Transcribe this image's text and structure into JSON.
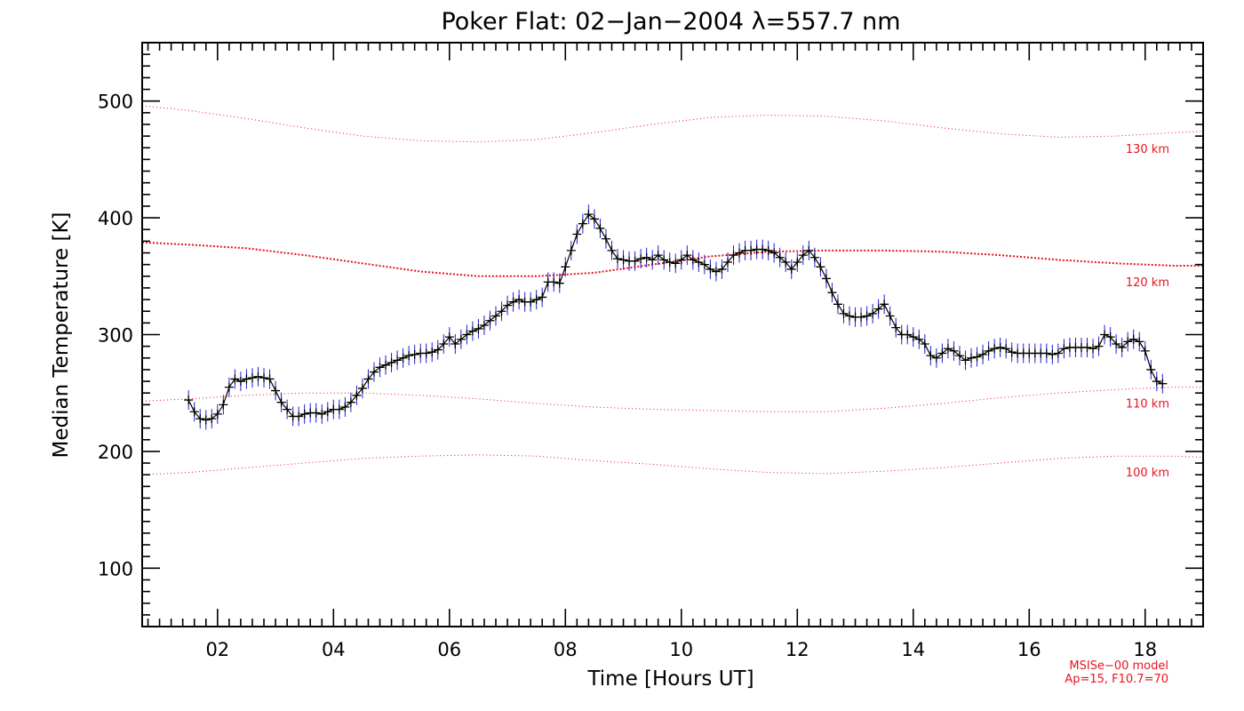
{
  "chart_data": {
    "type": "line",
    "title": "Poker Flat: 02−Jan−2004 λ=557.7 nm",
    "xlabel": "Time [Hours UT]",
    "ylabel": "Median Temperature [K]",
    "xlim": [
      0.7,
      19.0
    ],
    "ylim": [
      50,
      550
    ],
    "x_ticks": [
      2,
      4,
      6,
      8,
      10,
      12,
      14,
      16,
      18
    ],
    "x_tick_labels": [
      "02",
      "04",
      "06",
      "08",
      "10",
      "12",
      "14",
      "16",
      "18"
    ],
    "y_ticks": [
      100,
      200,
      300,
      400,
      500
    ],
    "y_tick_labels": [
      "100",
      "200",
      "300",
      "400",
      "500"
    ],
    "grid": false,
    "colors": {
      "data_line": "#000000",
      "markers": "#000000",
      "error_bars": "#1c1cdc",
      "model_lines": "#e8141e"
    },
    "series": [
      {
        "x": [
          1.5,
          1.6,
          1.7,
          1.8,
          1.9,
          2.0,
          2.1,
          2.2,
          2.3,
          2.4,
          2.5,
          2.6,
          2.7,
          2.8,
          2.9,
          3.0,
          3.1,
          3.2,
          3.3,
          3.4,
          3.5,
          3.6,
          3.7,
          3.8,
          3.9,
          4.0,
          4.1,
          4.2,
          4.3,
          4.4,
          4.5,
          4.6,
          4.7,
          4.8,
          4.9,
          5.0,
          5.1,
          5.2,
          5.3,
          5.4,
          5.5,
          5.6,
          5.7,
          5.8,
          5.9,
          6.0,
          6.1,
          6.2,
          6.3,
          6.4,
          6.5,
          6.6,
          6.7,
          6.8,
          6.9,
          7.0,
          7.1,
          7.2,
          7.3,
          7.4,
          7.5,
          7.6,
          7.7,
          7.8,
          7.9,
          8.0,
          8.1,
          8.2,
          8.3,
          8.4,
          8.5,
          8.6,
          8.7,
          8.8,
          8.9,
          9.0,
          9.1,
          9.2,
          9.3,
          9.4,
          9.5,
          9.6,
          9.7,
          9.8,
          9.9,
          10.0,
          10.1,
          10.2,
          10.3,
          10.4,
          10.5,
          10.6,
          10.7,
          10.8,
          10.9,
          11.0,
          11.1,
          11.2,
          11.3,
          11.4,
          11.5,
          11.6,
          11.7,
          11.8,
          11.9,
          12.0,
          12.1,
          12.2,
          12.3,
          12.4,
          12.5,
          12.6,
          12.7,
          12.8,
          12.9,
          13.0,
          13.1,
          13.2,
          13.3,
          13.4,
          13.5,
          13.6,
          13.7,
          13.8,
          13.9,
          14.0,
          14.1,
          14.2,
          14.3,
          14.4,
          14.5,
          14.6,
          14.7,
          14.8,
          14.9,
          15.0,
          15.1,
          15.2,
          15.3,
          15.4,
          15.5,
          15.6,
          15.7,
          15.8,
          15.9,
          16.0,
          16.1,
          16.2,
          16.3,
          16.4,
          16.5,
          16.6,
          16.7,
          16.8,
          16.9,
          17.0,
          17.1,
          17.2,
          17.3,
          17.4,
          17.5,
          17.6,
          17.7,
          17.8,
          17.9,
          18.0,
          18.1,
          18.2,
          18.3
        ],
        "y": [
          244,
          234,
          228,
          227,
          228,
          232,
          240,
          255,
          262,
          260,
          262,
          263,
          264,
          263,
          262,
          252,
          242,
          236,
          230,
          230,
          232,
          233,
          233,
          232,
          234,
          236,
          236,
          238,
          242,
          248,
          254,
          262,
          268,
          272,
          274,
          276,
          278,
          280,
          282,
          283,
          284,
          284,
          285,
          287,
          292,
          298,
          292,
          296,
          300,
          303,
          305,
          308,
          312,
          316,
          320,
          325,
          328,
          330,
          328,
          328,
          330,
          332,
          345,
          345,
          344,
          358,
          372,
          386,
          395,
          403,
          399,
          391,
          382,
          372,
          365,
          364,
          363,
          363,
          365,
          366,
          364,
          368,
          364,
          362,
          361,
          364,
          368,
          364,
          362,
          360,
          356,
          354,
          356,
          362,
          368,
          370,
          372,
          372,
          373,
          373,
          372,
          370,
          366,
          362,
          356,
          362,
          368,
          372,
          366,
          358,
          348,
          336,
          326,
          318,
          316,
          315,
          315,
          316,
          318,
          322,
          326,
          316,
          306,
          300,
          300,
          298,
          296,
          292,
          282,
          280,
          284,
          288,
          286,
          282,
          278,
          280,
          281,
          283,
          286,
          288,
          289,
          288,
          285,
          284,
          284,
          284,
          284,
          284,
          284,
          283,
          284,
          288,
          289,
          289,
          289,
          289,
          288,
          290,
          300,
          298,
          292,
          289,
          294,
          296,
          294,
          286,
          270,
          260,
          258
        ]
      }
    ],
    "model_curves": [
      {
        "label": "130 km",
        "x": [
          0.7,
          1.5,
          2.5,
          3.5,
          4.5,
          5.5,
          6.5,
          7.5,
          8.5,
          9.5,
          10.5,
          11.5,
          12.5,
          13.5,
          14.5,
          15.5,
          16.5,
          17.5,
          18.5,
          19.0
        ],
        "y": [
          496,
          492,
          485,
          477,
          470,
          466,
          465,
          467,
          473,
          480,
          486,
          488,
          487,
          483,
          477,
          472,
          469,
          470,
          473,
          474
        ]
      },
      {
        "label": "120 km",
        "x": [
          0.7,
          1.5,
          2.5,
          3.5,
          4.5,
          5.5,
          6.5,
          7.5,
          8.5,
          9.5,
          10.5,
          11.5,
          12.5,
          13.5,
          14.5,
          15.5,
          16.5,
          17.5,
          18.5,
          19.0
        ],
        "y": [
          379,
          377,
          374,
          368,
          361,
          354,
          350,
          350,
          353,
          360,
          367,
          371,
          372,
          372,
          371,
          368,
          364,
          361,
          359,
          359
        ]
      },
      {
        "label": "110 km",
        "x": [
          0.7,
          1.5,
          2.5,
          3.5,
          4.5,
          5.5,
          6.5,
          7.5,
          8.5,
          9.5,
          10.5,
          11.5,
          12.5,
          13.5,
          14.5,
          15.5,
          16.5,
          17.5,
          18.5,
          19.0
        ],
        "y": [
          243,
          245,
          248,
          250,
          250,
          248,
          245,
          241,
          238,
          236,
          235,
          234,
          234,
          237,
          241,
          246,
          250,
          253,
          255,
          255
        ]
      },
      {
        "label": "100 km",
        "x": [
          0.7,
          1.5,
          2.5,
          3.5,
          4.5,
          5.5,
          6.5,
          7.5,
          8.5,
          9.5,
          10.5,
          11.5,
          12.5,
          13.5,
          14.5,
          15.5,
          16.5,
          17.5,
          18.5,
          19.0
        ],
        "y": [
          180,
          182,
          186,
          190,
          194,
          196,
          197,
          196,
          192,
          189,
          185,
          182,
          181,
          183,
          186,
          190,
          194,
          196,
          196,
          195
        ]
      }
    ],
    "annotations": {
      "model_line1": "MSISe−00 model",
      "model_line2": "Ap=15, F10.7=70"
    }
  }
}
